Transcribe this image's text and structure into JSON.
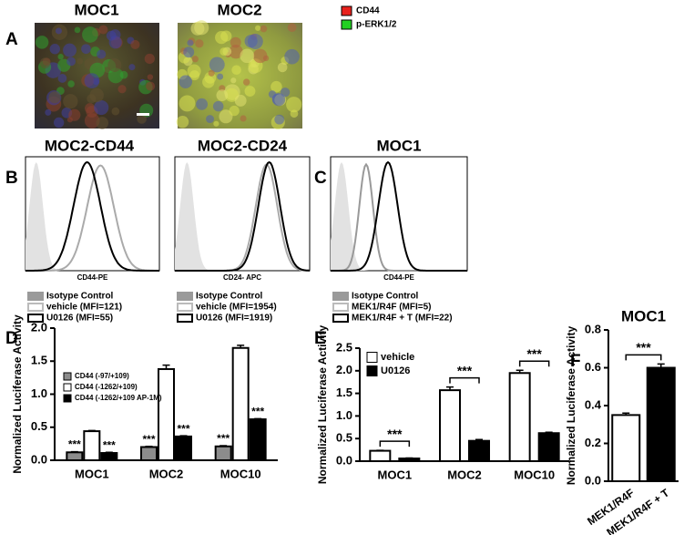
{
  "panel_a": {
    "letter": "A",
    "titles": [
      "MOC1",
      "MOC2"
    ],
    "legend": [
      "CD44",
      "p-ERK1/2"
    ],
    "legend_colors": [
      "#e8201c",
      "#22d022"
    ]
  },
  "panel_b": {
    "letter": "B",
    "plots": [
      {
        "title": "MOC2-CD44",
        "xlabel": "CD44-PE",
        "legend": [
          "Isotype Control",
          "vehicle (MFI=121)",
          "U0126 (MFI=55)"
        ]
      },
      {
        "title": "MOC2-CD24",
        "xlabel": "CD24- APC",
        "legend": [
          "Isotype Control",
          "vehicle (MFI=1954)",
          "U0126  (MFI=1919)"
        ]
      }
    ]
  },
  "panel_c": {
    "letter": "C",
    "title": "MOC1",
    "xlabel": "CD44-PE",
    "legend": [
      "Isotype Control",
      "MEK1/R4F      (MFI=5)",
      "MEK1/R4F + T (MFI=22)"
    ]
  },
  "chart_data": [
    {
      "type": "bar",
      "panel_letter": "D",
      "ylabel": "Normalized Luciferase Activity",
      "categories": [
        "MOC1",
        "MOC2",
        "MOC10"
      ],
      "series": [
        {
          "name": "CD44 (-97/+109)",
          "color": "#8c8c8c",
          "values": [
            0.12,
            0.2,
            0.21
          ],
          "errors": [
            0.01,
            0.01,
            0.01
          ]
        },
        {
          "name": "CD44 (-1262/+109)",
          "color": "#ffffff",
          "values": [
            0.44,
            1.38,
            1.7
          ],
          "errors": [
            0.01,
            0.06,
            0.04
          ]
        },
        {
          "name": "CD44 (-1262/+109 AP-1M)",
          "color": "#000000",
          "values": [
            0.11,
            0.36,
            0.62
          ],
          "errors": [
            0.01,
            0.01,
            0.01
          ]
        }
      ],
      "ylim": [
        0,
        2.0
      ],
      "yticks": [
        {
          "value": 0,
          "label": "0.0"
        },
        0.5,
        {
          "value": 1,
          "label": "1.0"
        },
        1.5,
        {
          "value": 2,
          "label": "2.0"
        }
      ],
      "annotations": [
        "***",
        "***",
        "***",
        "***",
        "***",
        "***"
      ]
    },
    {
      "type": "bar",
      "panel_letter": "E",
      "ylabel": "Normalized Luciferase Activity",
      "categories": [
        "MOC1",
        "MOC2",
        "MOC10"
      ],
      "series": [
        {
          "name": "vehicle",
          "color": "#ffffff",
          "values": [
            0.23,
            1.57,
            1.95
          ],
          "errors": [
            0.01,
            0.07,
            0.06
          ]
        },
        {
          "name": "U0126",
          "color": "#000000",
          "values": [
            0.06,
            0.45,
            0.62
          ],
          "errors": [
            0.01,
            0.03,
            0.02
          ]
        }
      ],
      "ylim": [
        0,
        2.5
      ],
      "yticks": [
        {
          "value": 0,
          "label": "0.0"
        },
        0.5,
        {
          "value": 1,
          "label": "1.0"
        },
        1.5,
        {
          "value": 2,
          "label": "2.0"
        },
        2.5
      ],
      "annotations": [
        "***",
        "***",
        "***"
      ]
    },
    {
      "type": "bar",
      "panel_letter": "F",
      "title": "MOC1",
      "ylabel": "Normalized Luciferase Activity",
      "categories": [
        "MEK1/R4F",
        "MEK1/R4F + T"
      ],
      "values": [
        0.35,
        0.6
      ],
      "errors": [
        0.01,
        0.02
      ],
      "colors": [
        "#ffffff",
        "#000000"
      ],
      "ylim": [
        0,
        0.8
      ],
      "yticks": [
        {
          "value": 0,
          "label": "0.0"
        },
        0.2,
        0.4,
        0.6,
        0.8
      ],
      "annotations": [
        "***"
      ]
    }
  ]
}
